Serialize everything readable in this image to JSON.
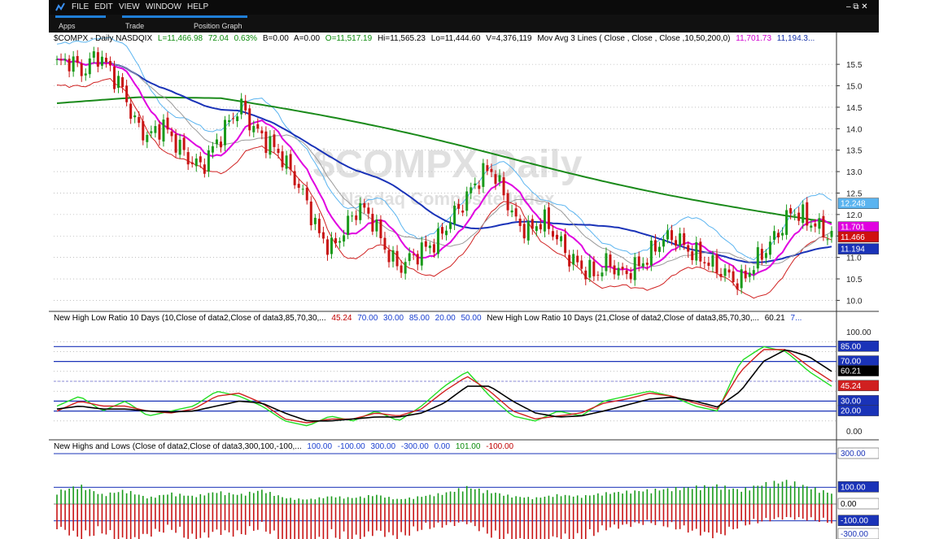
{
  "menu": {
    "items": [
      "FILE",
      "EDIT",
      "VIEW",
      "WINDOW",
      "HELP"
    ],
    "window_controls": "– ⧉ ✕"
  },
  "toolbar": {
    "buttons": [
      "Apps",
      "Trade",
      "Position Graph"
    ]
  },
  "price_header": {
    "symbol": "$COMPX - Daily  NASDQIX",
    "last": "L=11,466.98",
    "change": "72.04",
    "pct": "0.63%",
    "bid": "B=0.00",
    "ask": "A=0.00",
    "open": "O=11,517.19",
    "high": "Hi=11,565.23",
    "low": "Lo=11,444.60",
    "volume": "V=4,376,119",
    "study": "Mov Avg 3 Lines ( Close , Close , Close ,10,50,200,0)",
    "ma10": "11,701.73",
    "ma50": "11,194.3..."
  },
  "watermark": {
    "title": "$COMPX Daily",
    "subtitle": "Nasdaq Composite Index"
  },
  "price_axis": {
    "ticks": [
      "15.5",
      "15.0",
      "14.5",
      "14.0",
      "13.5",
      "13.0",
      "12.5",
      "12.0",
      "11.5",
      "11.0",
      "10.5",
      "10.0"
    ],
    "badges": {
      "upper_band": "12.248",
      "ma10": "11.701",
      "last": "11.466",
      "ma50": "11.194"
    }
  },
  "ratio_header": {
    "left": "New High Low Ratio 10 Days (10,Close of data2,Close of data3,85,70,30,...",
    "v1": "45.24",
    "v2": "70.00",
    "v3": "30.00",
    "v4": "85.00",
    "v5": "20.00",
    "v6": "50.00",
    "right": "New High Low Ratio 10 Days (21,Close of data2,Close of data3,85,70,30,...",
    "v7": "60.21",
    "v8": "7..."
  },
  "ratio_axis": {
    "ticks": [
      "100.00",
      "0.00"
    ],
    "badges": [
      "85.00",
      "70.00",
      "60.21",
      "45.24",
      "30.00",
      "20.00"
    ]
  },
  "nhl_header": {
    "left": "New Highs and Lows (Close of data2,Close of data3,300,100,-100,...",
    "v1": "100.00",
    "v2": "-100.00",
    "v3": "300.00",
    "v4": "-300.00",
    "v5": "0.00",
    "v6": "101.00",
    "v7": "-100.00"
  },
  "nhl_axis": {
    "badges": [
      "300.00",
      "100.00",
      "0.00",
      "-100.00",
      "-300.00"
    ]
  },
  "colors": {
    "up": "#1a9a1a",
    "down": "#c81414",
    "ma10": "#e000e0",
    "ma50": "#1a33b8",
    "ma200": "#1a8a1a",
    "band_upper": "#5ab4f0",
    "band_lower": "#d02020"
  },
  "chart_data": [
    {
      "type": "line",
      "title": "$COMPX - Daily",
      "ylim": [
        9.8,
        15.9
      ],
      "series": [
        {
          "name": "Close",
          "values": [
            15.5,
            15.6,
            15.3,
            15.75,
            15.4,
            14.9,
            14.1,
            13.8,
            14.1,
            13.7,
            13.3,
            13.1,
            13.6,
            14.1,
            14.55,
            14.0,
            13.7,
            13.4,
            12.9,
            12.3,
            11.5,
            11.2,
            11.7,
            12.2,
            11.9,
            11.2,
            10.75,
            11.0,
            11.2,
            11.4,
            11.9,
            12.3,
            12.8,
            13.1,
            12.5,
            11.8,
            11.6,
            11.9,
            11.5,
            11.0,
            10.75,
            10.6,
            10.9,
            10.6,
            10.75,
            11.0,
            11.4,
            11.5,
            11.2,
            11.0,
            10.8,
            10.6,
            10.4,
            10.8,
            11.2,
            11.6,
            12.1,
            11.9,
            11.7,
            11.47
          ]
        },
        {
          "name": "10",
          "values": []
        },
        {
          "name": "50",
          "values": []
        },
        {
          "name": "200",
          "values": []
        }
      ]
    },
    {
      "type": "line",
      "title": "New High Low Ratio 10 Days",
      "ylim": [
        0,
        100
      ],
      "series": [
        {
          "name": "",
          "values": [
            25,
            35,
            20,
            30,
            15,
            20,
            25,
            40,
            35,
            25,
            10,
            5,
            15,
            10,
            20,
            10,
            25,
            45,
            60,
            35,
            15,
            10,
            20,
            15,
            30,
            35,
            40,
            35,
            25,
            20,
            70,
            85,
            80,
            60,
            45
          ]
        },
        {
          "name": "",
          "values": [
            20,
            30,
            25,
            25,
            20,
            18,
            22,
            35,
            38,
            28,
            12,
            8,
            12,
            12,
            18,
            15,
            22,
            40,
            55,
            40,
            20,
            12,
            15,
            18,
            28,
            32,
            38,
            35,
            28,
            22,
            60,
            82,
            82,
            65,
            50
          ]
        },
        {
          "name": "",
          "values": [
            22,
            25,
            22,
            22,
            20,
            19,
            20,
            25,
            30,
            28,
            18,
            10,
            10,
            12,
            14,
            14,
            18,
            28,
            45,
            45,
            30,
            18,
            14,
            15,
            20,
            26,
            32,
            34,
            30,
            24,
            40,
            70,
            82,
            75,
            60
          ]
        }
      ]
    },
    {
      "type": "bar",
      "title": "New Highs and Lows",
      "ylim": [
        -300,
        300
      ],
      "series": [
        {
          "name": "",
          "values": [
            80,
            120,
            60,
            90,
            40,
            70,
            50,
            80,
            60,
            90,
            40,
            30,
            50,
            40,
            60,
            30,
            50,
            70,
            110,
            80,
            50,
            40,
            60,
            50,
            70,
            80,
            90,
            100,
            110,
            120,
            90,
            130,
            150,
            110,
            70
          ]
        },
        {
          "name": "",
          "values": [
            -150,
            -220,
            -180,
            -260,
            -200,
            -160,
            -240,
            -180,
            -200,
            -150,
            -260,
            -300,
            -200,
            -250,
            -180,
            -220,
            -160,
            -140,
            -120,
            -200,
            -260,
            -280,
            -220,
            -240,
            -160,
            -140,
            -120,
            -150,
            -180,
            -210,
            -140,
            -110,
            -90,
            -100,
            -120
          ]
        }
      ]
    }
  ]
}
